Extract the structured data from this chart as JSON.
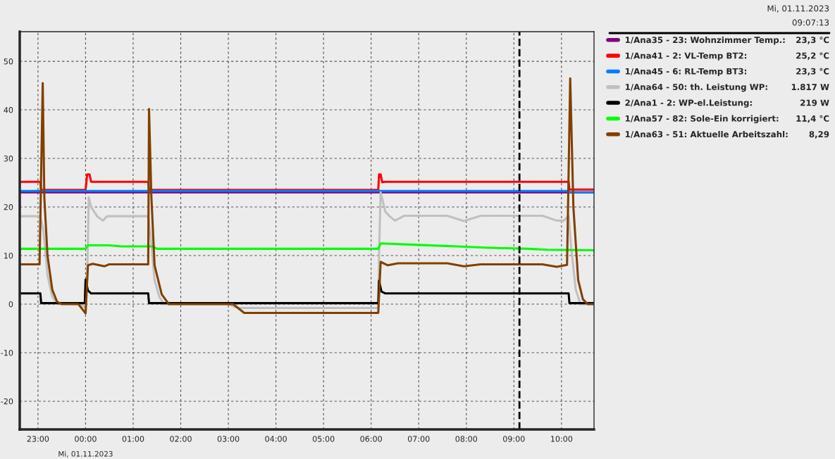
{
  "chart_data": {
    "type": "line",
    "xlim": [
      "2023-10-31T22:37",
      "2023-11-01T10:41"
    ],
    "ylim": [
      -25.8,
      56.1
    ],
    "xticks": [
      {
        "value": "2023-10-31T23:00",
        "label": "23:00"
      },
      {
        "value": "2023-11-01T00:00",
        "label": "00:00"
      },
      {
        "value": "2023-11-01T01:00",
        "label": "01:00"
      },
      {
        "value": "2023-11-01T02:00",
        "label": "02:00"
      },
      {
        "value": "2023-11-01T03:00",
        "label": "03:00"
      },
      {
        "value": "2023-11-01T04:00",
        "label": "04:00"
      },
      {
        "value": "2023-11-01T05:00",
        "label": "05:00"
      },
      {
        "value": "2023-11-01T06:00",
        "label": "06:00"
      },
      {
        "value": "2023-11-01T07:00",
        "label": "07:00"
      },
      {
        "value": "2023-11-01T08:00",
        "label": "08:00"
      },
      {
        "value": "2023-11-01T09:00",
        "label": "09:00"
      },
      {
        "value": "2023-11-01T10:00",
        "label": "10:00"
      }
    ],
    "yticks": [
      -20,
      -10,
      0,
      10,
      20,
      30,
      40,
      50
    ],
    "grid": true,
    "legend": "right",
    "marker": "none",
    "line_style": "solid",
    "ref_lines": [
      {
        "axis": "x",
        "value": "2023-11-01T09:07",
        "label": null,
        "color": "#000000",
        "line_style": "dashed"
      }
    ],
    "annotations": [
      "Mi, 01.11.2023",
      "09:07:13",
      "23,3 °C",
      "25,2 °C",
      "23,3 °C",
      "1.817 W",
      "219 W",
      "11,4 °C",
      "8,29",
      "Mi, 01.11.2023"
    ],
    "series": [
      {
        "name": "1/Ana35 - 23: Wohnzimmer Temp.:",
        "color": "#800080",
        "x": [
          "2023-10-31T22:37",
          "2023-11-01T10:41"
        ],
        "values": [
          23.0,
          23.0
        ]
      },
      {
        "name": "1/Ana41 - 2: VL-Temp BT2:",
        "color": "#ff0000",
        "x": [
          "2023-10-31T22:37",
          "2023-10-31T23:03",
          "2023-10-31T23:04",
          "2023-10-31T23:59",
          "2023-11-01T00:00",
          "2023-11-01T00:02",
          "2023-11-01T00:05",
          "2023-11-01T00:07",
          "2023-11-01T01:19",
          "2023-11-01T01:20",
          "2023-11-01T06:09",
          "2023-11-01T06:10",
          "2023-11-01T06:12",
          "2023-11-01T06:14",
          "2023-11-01T06:18",
          "2023-11-01T10:09",
          "2023-11-01T10:10",
          "2023-11-01T10:41"
        ],
        "values": [
          25.2,
          25.2,
          23.5,
          23.5,
          23.5,
          26.7,
          26.7,
          25.2,
          25.2,
          23.5,
          23.5,
          26.7,
          26.7,
          25.1,
          25.2,
          25.2,
          23.6,
          23.6
        ]
      },
      {
        "name": "1/Ana45 - 6: RL-Temp BT3:",
        "color": "#0080ff",
        "x": [
          "2023-10-31T22:37",
          "2023-11-01T10:09",
          "2023-11-01T10:10",
          "2023-11-01T10:41"
        ],
        "values": [
          23.3,
          23.3,
          23.0,
          23.0
        ]
      },
      {
        "name": "1/Ana64 - 50: th. Leistung WP:",
        "color": "#c0c0c0",
        "x": [
          "2023-10-31T22:37",
          "2023-10-31T23:03",
          "2023-10-31T23:07",
          "2023-10-31T23:12",
          "2023-10-31T23:18",
          "2023-10-31T23:24",
          "2023-10-31T23:54",
          "2023-11-01T00:00",
          "2023-11-01T00:02",
          "2023-11-01T00:04",
          "2023-11-01T00:07",
          "2023-11-01T00:15",
          "2023-11-01T00:22",
          "2023-11-01T00:27",
          "2023-11-01T01:19",
          "2023-11-01T01:22",
          "2023-11-01T01:27",
          "2023-11-01T01:33",
          "2023-11-01T01:39",
          "2023-11-01T03:00",
          "2023-11-01T03:12",
          "2023-11-01T06:09",
          "2023-11-01T06:10",
          "2023-11-01T06:12",
          "2023-11-01T06:18",
          "2023-11-01T06:24",
          "2023-11-01T06:30",
          "2023-11-01T06:42",
          "2023-11-01T07:36",
          "2023-11-01T07:57",
          "2023-11-01T08:18",
          "2023-11-01T09:36",
          "2023-11-01T09:54",
          "2023-11-01T10:03",
          "2023-11-01T10:09",
          "2023-11-01T10:12",
          "2023-11-01T10:18",
          "2023-11-01T10:24",
          "2023-11-01T10:41"
        ],
        "values": [
          18.1,
          18.1,
          15,
          6,
          1.5,
          0.2,
          0,
          -0.8,
          5,
          22.0,
          20,
          18.0,
          17.2,
          18.1,
          18.1,
          14,
          5,
          1.5,
          0,
          0,
          -0.8,
          -0.8,
          10,
          23.0,
          19,
          18.0,
          17.2,
          18.2,
          18.2,
          17.1,
          18.2,
          18.2,
          17.2,
          17.2,
          18.2,
          12,
          3,
          0,
          0
        ]
      },
      {
        "name": "2/Ana1 - 2: WP-el.Leistung:",
        "color": "#000000",
        "x": [
          "2023-10-31T22:37",
          "2023-10-31T23:03",
          "2023-10-31T23:04",
          "2023-10-31T23:59",
          "2023-11-01T00:00",
          "2023-11-01T00:03",
          "2023-11-01T00:07",
          "2023-11-01T01:19",
          "2023-11-01T01:20",
          "2023-11-01T06:09",
          "2023-11-01T06:10",
          "2023-11-01T06:13",
          "2023-11-01T06:18",
          "2023-11-01T10:09",
          "2023-11-01T10:10",
          "2023-11-01T10:41"
        ],
        "values": [
          2.2,
          2.2,
          0.2,
          0.2,
          5.0,
          2.8,
          2.2,
          2.2,
          0.2,
          0.2,
          4.8,
          2.6,
          2.2,
          2.2,
          0.2,
          0.2
        ]
      },
      {
        "name": "1/Ana57 - 82: Sole-Ein korrigiert:",
        "color": "#00ff00",
        "x": [
          "2023-10-31T22:37",
          "2023-11-01T00:00",
          "2023-11-01T00:03",
          "2023-11-01T00:30",
          "2023-11-01T00:45",
          "2023-11-01T01:24",
          "2023-11-01T01:30",
          "2023-11-01T06:09",
          "2023-11-01T06:12",
          "2023-11-01T07:00",
          "2023-11-01T07:48",
          "2023-11-01T08:30",
          "2023-11-01T09:18",
          "2023-11-01T09:42",
          "2023-11-01T10:41"
        ],
        "values": [
          11.4,
          11.4,
          12.1,
          12.1,
          11.9,
          11.9,
          11.4,
          11.4,
          12.5,
          12.2,
          11.9,
          11.6,
          11.4,
          11.2,
          11.1
        ]
      },
      {
        "name": "1/Ana63 - 51: Aktuelle Arbeitszahl:",
        "color": "#804000",
        "x": [
          "2023-10-31T22:37",
          "2023-10-31T23:02",
          "2023-10-31T23:06",
          "2023-10-31T23:08",
          "2023-10-31T23:12",
          "2023-10-31T23:18",
          "2023-10-31T23:24",
          "2023-10-31T23:30",
          "2023-10-31T23:51",
          "2023-11-01T00:00",
          "2023-11-01T00:03",
          "2023-11-01T00:09",
          "2023-11-01T00:24",
          "2023-11-01T00:30",
          "2023-11-01T01:19",
          "2023-11-01T01:20",
          "2023-11-01T01:23",
          "2023-11-01T01:27",
          "2023-11-01T01:36",
          "2023-11-01T01:45",
          "2023-11-01T03:06",
          "2023-11-01T03:20",
          "2023-11-01T06:09",
          "2023-11-01T06:12",
          "2023-11-01T06:21",
          "2023-11-01T06:34",
          "2023-11-01T07:36",
          "2023-11-01T07:57",
          "2023-11-01T08:18",
          "2023-11-01T09:36",
          "2023-11-01T09:54",
          "2023-11-01T10:07",
          "2023-11-01T10:11",
          "2023-11-01T10:15",
          "2023-11-01T10:21",
          "2023-11-01T10:27",
          "2023-11-01T10:33",
          "2023-11-01T10:41"
        ],
        "values": [
          8.2,
          8.2,
          45.5,
          22,
          10,
          3,
          0.5,
          0,
          0,
          -1.9,
          8.0,
          8.3,
          7.8,
          8.2,
          8.2,
          40.2,
          22,
          8,
          2,
          0,
          0,
          -1.8,
          -1.8,
          8.7,
          8.0,
          8.4,
          8.4,
          7.8,
          8.2,
          8.2,
          7.7,
          8.1,
          46.5,
          20,
          5,
          1,
          0,
          0
        ]
      }
    ]
  }
}
